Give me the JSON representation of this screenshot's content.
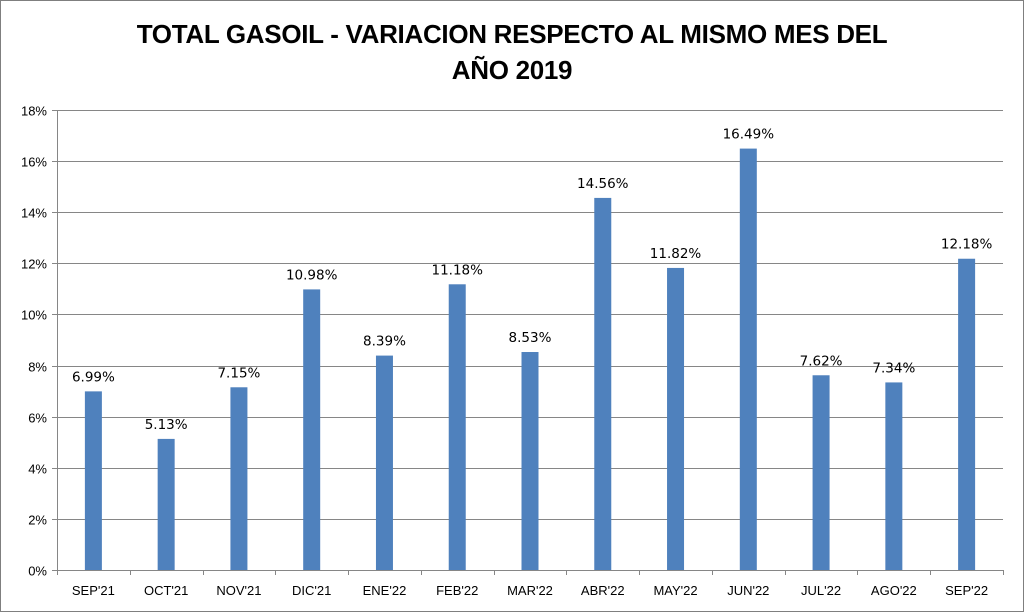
{
  "chart_data": {
    "type": "bar",
    "title_line1": "TOTAL GASOIL - VARIACION RESPECTO AL MISMO MES DEL",
    "title_line2": "AÑO 2019",
    "categories": [
      "SEP'21",
      "OCT'21",
      "NOV'21",
      "DIC'21",
      "ENE'22",
      "FEB'22",
      "MAR'22",
      "ABR'22",
      "MAY'22",
      "JUN'22",
      "JUL'22",
      "AGO'22",
      "SEP'22"
    ],
    "values": [
      6.99,
      5.13,
      7.15,
      10.98,
      8.39,
      11.18,
      8.53,
      14.56,
      11.82,
      16.49,
      7.62,
      7.34,
      12.18
    ],
    "data_labels": [
      "6.99%",
      "5.13%",
      "7.15%",
      "10.98%",
      "8.39%",
      "11.18%",
      "8.53%",
      "14.56%",
      "11.82%",
      "16.49%",
      "7.62%",
      "7.34%",
      "12.18%"
    ],
    "y_ticks": [
      "0%",
      "2%",
      "4%",
      "6%",
      "8%",
      "10%",
      "12%",
      "14%",
      "16%",
      "18%"
    ],
    "ylim": [
      0,
      18
    ],
    "y_step": 2,
    "grid": true,
    "legend": "none",
    "bar_color": "#4f81bd",
    "grid_color": "#868686"
  }
}
